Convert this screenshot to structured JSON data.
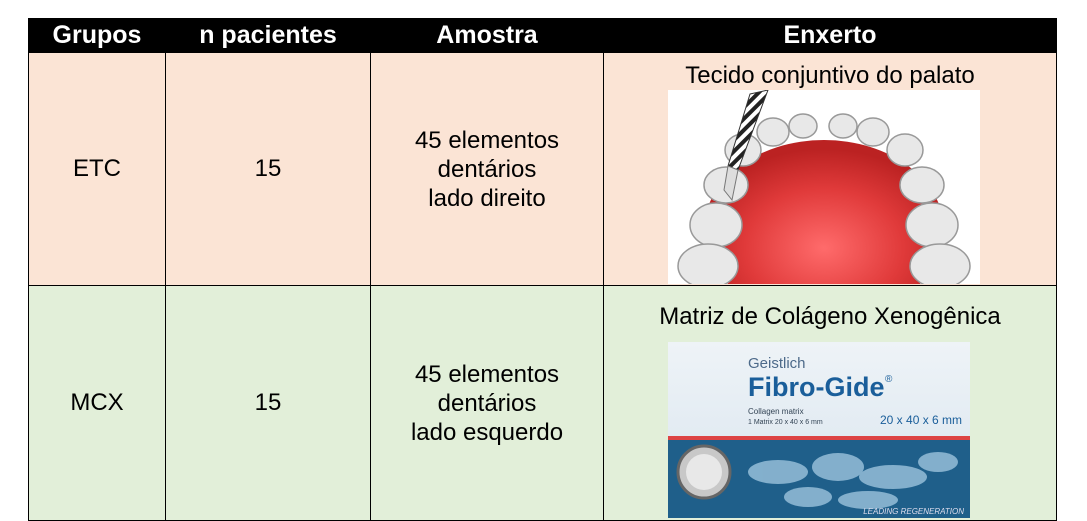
{
  "table": {
    "header": [
      "Grupos",
      "n pacientes",
      "Amostra",
      "Enxerto"
    ],
    "rows": [
      {
        "grupo": "ETC",
        "n": 15,
        "amostra": [
          "45 elementos",
          "dentários",
          "lado direito"
        ],
        "enxerto": "Tecido conjuntivo do palato"
      },
      {
        "grupo": "MCX",
        "n": 15,
        "amostra": [
          "45 elementos",
          "dentários",
          "lado esquerdo"
        ],
        "enxerto": "Matriz de Colágeno Xenogênica"
      }
    ]
  },
  "product_image": {
    "brand": "Geistlich",
    "name": "Fibro-Gide",
    "registered": "®",
    "subtitle": "Collagen matrix",
    "spec": "1 Matrix 20 x 40 x 6 mm",
    "size": "20 x 40 x 6 mm",
    "footer": "LEADING REGENERATION"
  }
}
